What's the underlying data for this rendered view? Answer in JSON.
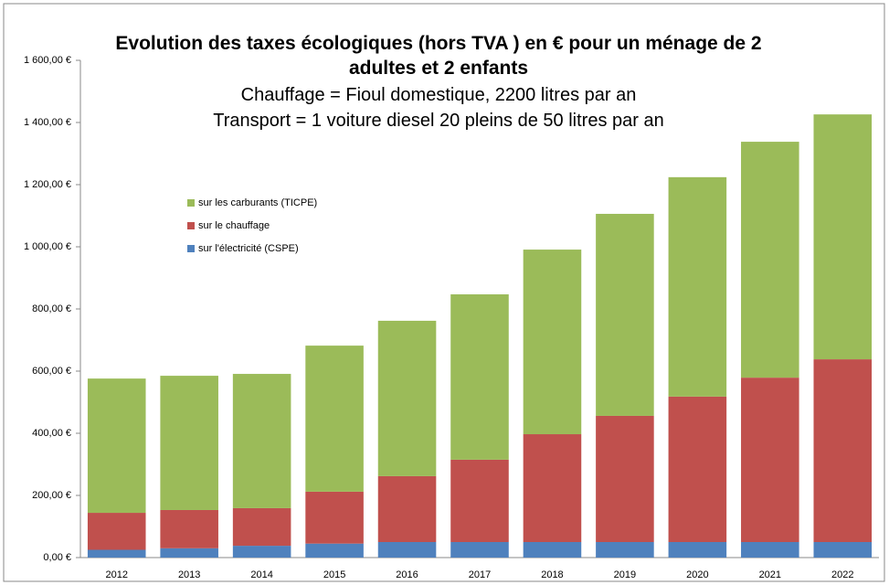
{
  "chart_data": {
    "type": "bar",
    "stacked": true,
    "title": "Evolution des taxes écologiques (hors TVA ) en € pour un ménage de 2 adultes et 2 enfants",
    "subtitle": [
      "Chauffage = Fioul domestique, 2200 litres par an",
      "Transport = 1 voiture diesel 20 pleins de 50 litres par an"
    ],
    "categories": [
      "2012",
      "2013",
      "2014",
      "2015",
      "2016",
      "2017",
      "2018",
      "2019",
      "2020",
      "2021",
      "2022"
    ],
    "series": [
      {
        "name": "sur l'électricité (CSPE)",
        "color": "#4f81bd",
        "values": [
          25,
          30,
          38,
          45,
          50,
          50,
          50,
          50,
          50,
          50,
          50
        ]
      },
      {
        "name": "sur le chauffage",
        "color": "#c0504d",
        "values": [
          119,
          123,
          121,
          167,
          212,
          265,
          347,
          406,
          468,
          529,
          588
        ]
      },
      {
        "name": "sur les carburants (TICPE)",
        "color": "#9bbb59",
        "values": [
          432,
          432,
          432,
          470,
          500,
          532,
          594,
          650,
          706,
          759,
          788
        ]
      }
    ],
    "ylim": [
      0,
      1600
    ],
    "yticks": [
      {
        "value": 0,
        "label": "0,00 €"
      },
      {
        "value": 200,
        "label": "200,00 €"
      },
      {
        "value": 400,
        "label": "400,00 €"
      },
      {
        "value": 600,
        "label": "600,00 €"
      },
      {
        "value": 800,
        "label": "800,00 €"
      },
      {
        "value": 1000,
        "label": "1 000,00 €"
      },
      {
        "value": 1200,
        "label": "1 200,00 €"
      },
      {
        "value": 1400,
        "label": "1 400,00 €"
      },
      {
        "value": 1600,
        "label": "1 600,00 €"
      }
    ],
    "legend": "upper-left"
  }
}
